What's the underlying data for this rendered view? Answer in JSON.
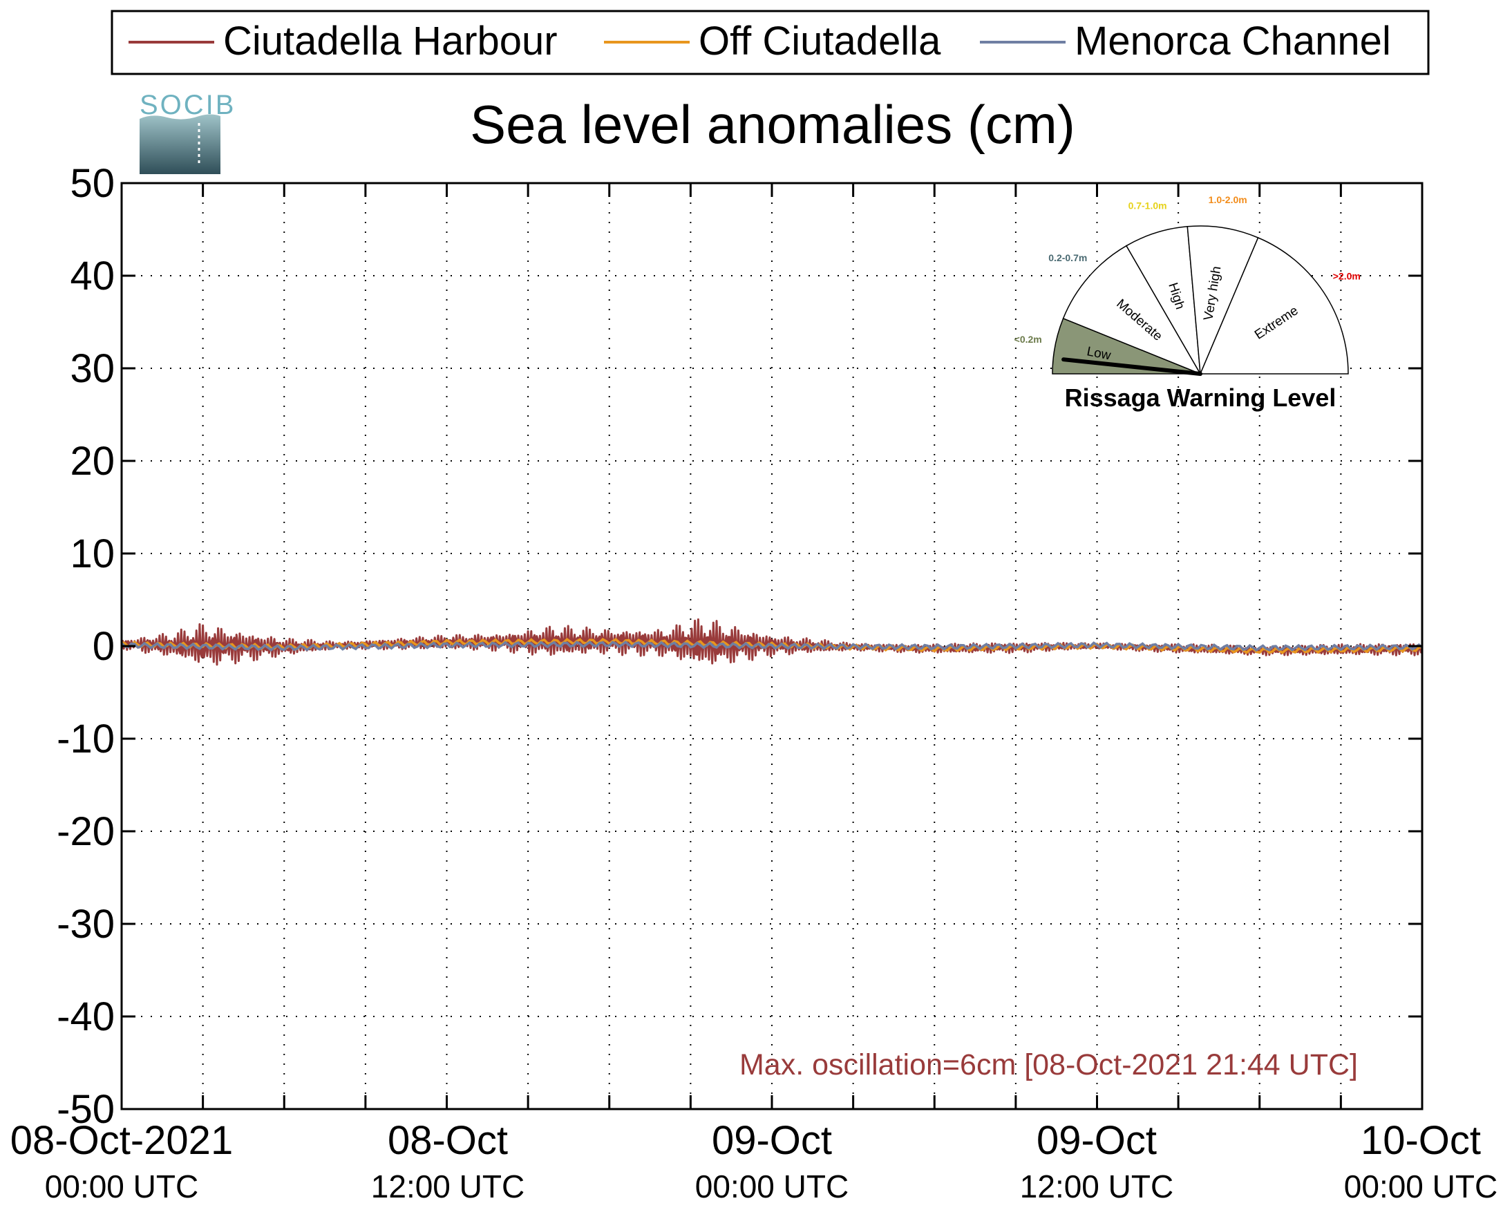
{
  "legend": {
    "items": [
      {
        "label": "Ciutadella Harbour",
        "color": "#993b3b"
      },
      {
        "label": "Off Ciutadella",
        "color": "#e8961e"
      },
      {
        "label": "Menorca Channel",
        "color": "#6f7fa3"
      }
    ]
  },
  "logo": {
    "text": "SOCIB"
  },
  "annotation": "Max. oscillation=6cm [08-Oct-2021 21:44 UTC]",
  "gauge": {
    "title": "Rissaga Warning Level",
    "level_value": "Low",
    "segments": [
      {
        "label": "Low",
        "range": "<0.2m",
        "range_color": "#6b7a4a",
        "fill": "#8a9677"
      },
      {
        "label": "Moderate",
        "range": "0.2-0.7m",
        "range_color": "#4a6a72",
        "fill": "#ffffff"
      },
      {
        "label": "High",
        "range": "0.7-1.0m",
        "range_color": "#e6d21a",
        "fill": "#ffffff"
      },
      {
        "label": "Very high",
        "range": "1.0-2.0m",
        "range_color": "#f28c1a",
        "fill": "#ffffff"
      },
      {
        "label": "Extreme",
        "range": ">2.0m",
        "range_color": "#e00000",
        "fill": "#ffffff"
      }
    ]
  },
  "chart_data": {
    "type": "line",
    "title": "Sea level anomalies (cm)",
    "xlabel": "",
    "ylabel": "",
    "ylim": [
      -50,
      50
    ],
    "yticks": [
      -50,
      -40,
      -30,
      -20,
      -10,
      0,
      10,
      20,
      30,
      40,
      50
    ],
    "xlim": [
      "2021-10-08 00:00",
      "2021-10-10 00:00"
    ],
    "xticks": [
      {
        "line1": "08-Oct-2021",
        "line2": "00:00 UTC"
      },
      {
        "line1": "08-Oct",
        "line2": "12:00 UTC"
      },
      {
        "line1": "09-Oct",
        "line2": "00:00 UTC"
      },
      {
        "line1": "09-Oct",
        "line2": "12:00 UTC"
      },
      {
        "line1": "10-Oct",
        "line2": "00:00 UTC"
      }
    ],
    "grid": true,
    "legend_position": "top",
    "series": [
      {
        "name": "Ciutadella Harbour",
        "color": "#993b3b",
        "oscillation_envelope_cm": {
          "x": [
            "2021-10-08 00:00",
            "2021-10-08 02:00",
            "2021-10-08 03:00",
            "2021-10-08 06:00",
            "2021-10-08 08:00",
            "2021-10-08 10:00",
            "2021-10-08 14:00",
            "2021-10-08 16:00",
            "2021-10-08 18:00",
            "2021-10-08 20:00",
            "2021-10-08 21:30",
            "2021-10-09 00:00",
            "2021-10-09 03:00",
            "2021-10-09 06:00",
            "2021-10-09 09:00",
            "2021-10-09 12:00",
            "2021-10-09 15:00",
            "2021-10-09 18:00",
            "2021-10-10 00:00"
          ],
          "amplitude": [
            0.5,
            1.5,
            2.5,
            1.0,
            0.4,
            0.6,
            1.0,
            1.8,
            1.4,
            1.6,
            2.9,
            1.2,
            0.4,
            0.5,
            0.6,
            0.3,
            0.5,
            0.5,
            0.7
          ]
        }
      },
      {
        "name": "Off Ciutadella",
        "color": "#e8961e",
        "mean_cm": {
          "x": [
            "2021-10-08 00:00",
            "2021-10-08 06:00",
            "2021-10-08 12:00",
            "2021-10-08 18:00",
            "2021-10-09 00:00",
            "2021-10-09 06:00",
            "2021-10-09 12:00",
            "2021-10-09 18:00",
            "2021-10-10 00:00"
          ],
          "y": [
            0.2,
            -0.1,
            0.4,
            0.5,
            0.1,
            -0.3,
            0.0,
            -0.5,
            -0.3
          ]
        }
      },
      {
        "name": "Menorca Channel",
        "color": "#6f7fa3",
        "mean_cm": {
          "x": [
            "2021-10-08 00:00",
            "2021-10-08 06:00",
            "2021-10-08 12:00",
            "2021-10-08 18:00",
            "2021-10-09 00:00",
            "2021-10-09 06:00",
            "2021-10-09 12:00",
            "2021-10-09 18:00",
            "2021-10-10 00:00"
          ],
          "y": [
            0.1,
            -0.2,
            0.1,
            0.2,
            0.0,
            -0.1,
            0.1,
            -0.2,
            -0.1
          ]
        }
      }
    ]
  }
}
